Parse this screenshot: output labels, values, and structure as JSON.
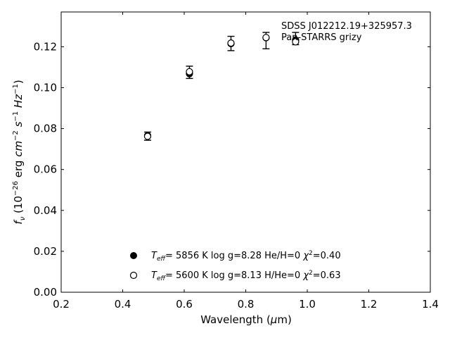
{
  "chart_data": {
    "type": "scatter",
    "title": "",
    "annotations": [
      "SDSS J012212.19+325957.3",
      "Pan-STARRS grizy"
    ],
    "xlabel": "Wavelength (μm)",
    "ylabel": "f_ν (10^-26 erg cm^-2 s^-1 Hz^-1)",
    "xlim": [
      0.2,
      1.4
    ],
    "ylim": [
      0.0,
      0.137
    ],
    "xticks": [
      "0.2",
      "0.4",
      "0.6",
      "0.8",
      "1.0",
      "1.2",
      "1.4"
    ],
    "yticks": [
      "0.00",
      "0.02",
      "0.04",
      "0.06",
      "0.08",
      "0.10",
      "0.12"
    ],
    "observed": {
      "marker": "errorbar",
      "x": [
        0.481,
        0.617,
        0.752,
        0.866,
        0.962
      ],
      "y": [
        0.0763,
        0.1075,
        0.1216,
        0.123,
        0.124
      ],
      "yerr": [
        0.002,
        0.003,
        0.0035,
        0.004,
        0.003
      ]
    },
    "series": [
      {
        "marker": "filled-circle",
        "x": [
          0.481,
          0.617,
          0.752,
          0.866,
          0.962
        ],
        "y": [
          0.0766,
          0.1068,
          0.1215,
          0.1244,
          0.1233
        ]
      },
      {
        "marker": "open-circle",
        "x": [
          0.481,
          0.617,
          0.752,
          0.866,
          0.962
        ],
        "y": [
          0.0762,
          0.1078,
          0.1218,
          0.1245,
          0.1224
        ]
      }
    ],
    "legend": {
      "placement": "lower-center",
      "entries": [
        {
          "teff": "5856 K",
          "rest": "log g=8.28  He/H=0",
          "chi2": "=0.40",
          "marker": "filled-circle"
        },
        {
          "teff": "5600 K",
          "rest": "log g=8.13  H/He=0",
          "chi2": "=0.63",
          "marker": "open-circle"
        }
      ]
    },
    "grid": false
  }
}
